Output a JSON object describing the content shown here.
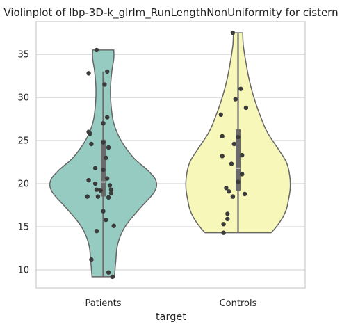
{
  "chart_data": {
    "type": "violin",
    "title": "Violinplot of lbp-3D-k_glrlm_RunLengthNonUniformity for cistern",
    "xlabel": "target",
    "ylabel": "",
    "ylim": [
      7.9,
      38.8
    ],
    "yticks": [
      10,
      15,
      20,
      25,
      30,
      35
    ],
    "grid": "horizontal",
    "categories": [
      "Patients",
      "Controls"
    ],
    "colors": {
      "Patients": "#96cbc1",
      "Controls": "#f7f7b9",
      "outline": "#666666",
      "points": "#3a3a3a",
      "box": "#6a6a6a",
      "median": "#ffffff"
    },
    "violins": [
      {
        "category": "Patients",
        "min": 9.2,
        "max": 35.5,
        "q1": 18.5,
        "median": 20.2,
        "q3": 25.1,
        "whisker_low": 9.2,
        "whisker_high": 33.0,
        "density": [
          [
            9.2,
            0.17
          ],
          [
            11,
            0.19
          ],
          [
            13,
            0.22
          ],
          [
            15,
            0.33
          ],
          [
            17,
            0.54
          ],
          [
            19,
            0.77
          ],
          [
            20.3,
            0.8
          ],
          [
            21.5,
            0.68
          ],
          [
            23,
            0.46
          ],
          [
            25,
            0.27
          ],
          [
            27,
            0.16
          ],
          [
            29,
            0.12
          ],
          [
            31,
            0.11
          ],
          [
            33,
            0.13
          ],
          [
            34.5,
            0.16
          ],
          [
            35.5,
            0.16
          ]
        ],
        "points": [
          [
            -0.05,
            35.5
          ],
          [
            -0.11,
            32.8
          ],
          [
            0.03,
            33.0
          ],
          [
            0.01,
            31.5
          ],
          [
            0.03,
            27.7
          ],
          [
            0.0,
            27.0
          ],
          [
            -0.11,
            26.0
          ],
          [
            -0.1,
            25.8
          ],
          [
            -0.09,
            24.6
          ],
          [
            0.04,
            24.2
          ],
          [
            0.0,
            24.8
          ],
          [
            -0.06,
            21.8
          ],
          [
            0.02,
            23.0
          ],
          [
            0.0,
            21.6
          ],
          [
            0.03,
            20.6
          ],
          [
            -0.11,
            20.4
          ],
          [
            -0.06,
            20.0
          ],
          [
            0.05,
            19.8
          ],
          [
            0.06,
            19.3
          ],
          [
            -0.05,
            19.3
          ],
          [
            -0.02,
            19.2
          ],
          [
            0.06,
            18.9
          ],
          [
            -0.04,
            18.5
          ],
          [
            -0.12,
            18.5
          ],
          [
            0.04,
            18.4
          ],
          [
            0.0,
            16.8
          ],
          [
            0.02,
            15.8
          ],
          [
            0.08,
            15.1
          ],
          [
            -0.05,
            14.5
          ],
          [
            -0.09,
            11.2
          ],
          [
            0.04,
            9.7
          ],
          [
            0.07,
            9.2
          ]
        ]
      },
      {
        "category": "Controls",
        "min": 14.3,
        "max": 37.5,
        "q1": 19.2,
        "median": 21.8,
        "q3": 26.3,
        "whisker_low": 14.3,
        "whisker_high": 37.5,
        "density": [
          [
            14.3,
            0.5
          ],
          [
            15,
            0.58
          ],
          [
            16,
            0.67
          ],
          [
            17,
            0.73
          ],
          [
            18,
            0.76
          ],
          [
            19.5,
            0.79
          ],
          [
            21,
            0.78
          ],
          [
            22.5,
            0.73
          ],
          [
            24,
            0.61
          ],
          [
            26,
            0.44
          ],
          [
            28,
            0.33
          ],
          [
            30,
            0.24
          ],
          [
            32,
            0.17
          ],
          [
            34,
            0.12
          ],
          [
            36,
            0.08
          ],
          [
            37.5,
            0.07
          ]
        ],
        "points": [
          [
            -0.04,
            37.5
          ],
          [
            0.02,
            31.0
          ],
          [
            -0.02,
            29.8
          ],
          [
            0.06,
            28.8
          ],
          [
            -0.13,
            28.0
          ],
          [
            -0.12,
            25.5
          ],
          [
            0.0,
            25.4
          ],
          [
            -0.03,
            24.6
          ],
          [
            0.03,
            23.3
          ],
          [
            -0.12,
            23.2
          ],
          [
            -0.05,
            22.3
          ],
          [
            0.03,
            21.1
          ],
          [
            0.0,
            20.2
          ],
          [
            -0.09,
            19.5
          ],
          [
            -0.07,
            19.1
          ],
          [
            0.05,
            18.8
          ],
          [
            -0.04,
            18.5
          ],
          [
            -0.08,
            16.5
          ],
          [
            -0.08,
            15.9
          ],
          [
            -0.11,
            15.3
          ],
          [
            -0.11,
            14.3
          ]
        ]
      }
    ]
  }
}
